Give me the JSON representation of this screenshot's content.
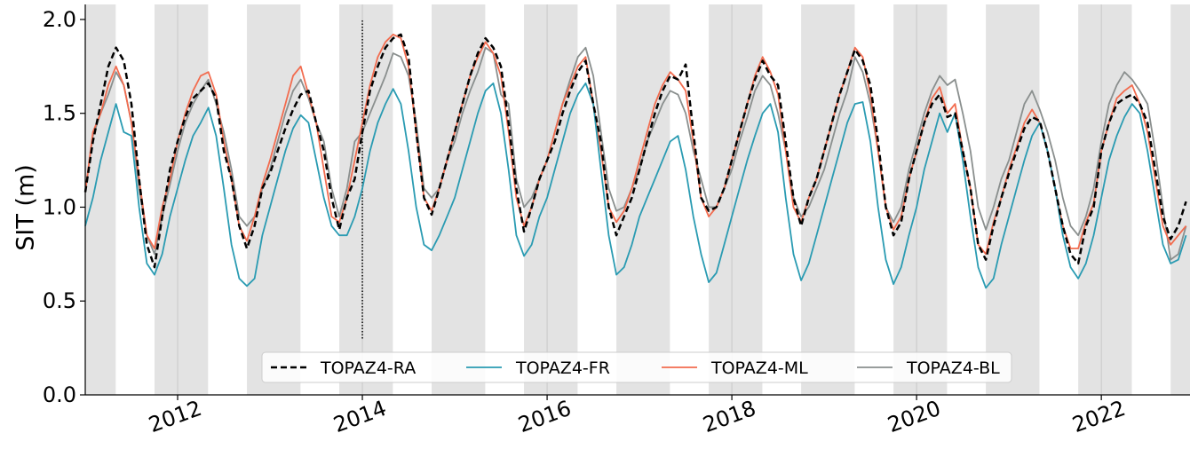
{
  "chart_data": {
    "type": "line",
    "y_label": "SIT (m)",
    "x": [
      2011,
      2011.083,
      2011.167,
      2011.25,
      2011.333,
      2011.417,
      2011.5,
      2011.583,
      2011.667,
      2011.75,
      2011.833,
      2011.917,
      2012,
      2012.083,
      2012.167,
      2012.25,
      2012.333,
      2012.417,
      2012.5,
      2012.583,
      2012.667,
      2012.75,
      2012.833,
      2012.917,
      2013,
      2013.083,
      2013.167,
      2013.25,
      2013.333,
      2013.417,
      2013.5,
      2013.583,
      2013.667,
      2013.75,
      2013.833,
      2013.917,
      2014,
      2014.083,
      2014.167,
      2014.25,
      2014.333,
      2014.417,
      2014.5,
      2014.583,
      2014.667,
      2014.75,
      2014.833,
      2014.917,
      2015,
      2015.083,
      2015.167,
      2015.25,
      2015.333,
      2015.417,
      2015.5,
      2015.583,
      2015.667,
      2015.75,
      2015.833,
      2015.917,
      2016,
      2016.083,
      2016.167,
      2016.25,
      2016.333,
      2016.417,
      2016.5,
      2016.583,
      2016.667,
      2016.75,
      2016.833,
      2016.917,
      2017,
      2017.083,
      2017.167,
      2017.25,
      2017.333,
      2017.417,
      2017.5,
      2017.583,
      2017.667,
      2017.75,
      2017.833,
      2017.917,
      2018,
      2018.083,
      2018.167,
      2018.25,
      2018.333,
      2018.417,
      2018.5,
      2018.583,
      2018.667,
      2018.75,
      2018.833,
      2018.917,
      2019,
      2019.083,
      2019.167,
      2019.25,
      2019.333,
      2019.417,
      2019.5,
      2019.583,
      2019.667,
      2019.75,
      2019.833,
      2019.917,
      2020,
      2020.083,
      2020.167,
      2020.25,
      2020.333,
      2020.417,
      2020.5,
      2020.583,
      2020.667,
      2020.75,
      2020.833,
      2020.917,
      2021,
      2021.083,
      2021.167,
      2021.25,
      2021.333,
      2021.417,
      2021.5,
      2021.583,
      2021.667,
      2021.75,
      2021.833,
      2021.917,
      2022,
      2022.083,
      2022.167,
      2022.25,
      2022.333,
      2022.417,
      2022.5,
      2022.583,
      2022.667,
      2022.75,
      2022.833,
      2022.917
    ],
    "series": [
      {
        "name": "TOPAZ4-RA",
        "color": "#000000",
        "dashed": true,
        "values": [
          1.08,
          1.35,
          1.55,
          1.75,
          1.85,
          1.78,
          1.55,
          1.15,
          0.8,
          0.68,
          0.95,
          1.2,
          1.35,
          1.48,
          1.58,
          1.62,
          1.66,
          1.58,
          1.3,
          1.15,
          0.9,
          0.78,
          0.9,
          1.1,
          1.18,
          1.3,
          1.42,
          1.52,
          1.6,
          1.62,
          1.45,
          1.3,
          1.05,
          0.88,
          1.05,
          1.15,
          1.4,
          1.62,
          1.75,
          1.85,
          1.9,
          1.92,
          1.8,
          1.4,
          1.05,
          0.96,
          1.1,
          1.25,
          1.4,
          1.55,
          1.7,
          1.82,
          1.9,
          1.85,
          1.75,
          1.45,
          1.1,
          0.87,
          1.0,
          1.15,
          1.25,
          1.35,
          1.5,
          1.62,
          1.72,
          1.78,
          1.55,
          1.35,
          1.0,
          0.85,
          0.95,
          1.05,
          1.2,
          1.35,
          1.5,
          1.62,
          1.7,
          1.68,
          1.76,
          1.4,
          1.05,
          0.98,
          1.0,
          1.1,
          1.25,
          1.4,
          1.55,
          1.68,
          1.78,
          1.7,
          1.65,
          1.35,
          1.05,
          0.9,
          1.05,
          1.15,
          1.3,
          1.45,
          1.6,
          1.72,
          1.84,
          1.78,
          1.65,
          1.35,
          1.0,
          0.85,
          0.92,
          1.15,
          1.3,
          1.45,
          1.55,
          1.6,
          1.48,
          1.5,
          1.3,
          1.1,
          0.8,
          0.72,
          0.9,
          1.05,
          1.18,
          1.3,
          1.42,
          1.48,
          1.46,
          1.3,
          1.1,
          0.9,
          0.75,
          0.7,
          0.9,
          1.0,
          1.3,
          1.45,
          1.55,
          1.58,
          1.6,
          1.55,
          1.45,
          1.2,
          0.95,
          0.83,
          0.9,
          1.03
        ]
      },
      {
        "name": "TOPAZ4-FR",
        "color": "#2a9bb2",
        "dashed": false,
        "values": [
          0.9,
          1.05,
          1.25,
          1.4,
          1.55,
          1.4,
          1.38,
          1.0,
          0.7,
          0.64,
          0.75,
          0.95,
          1.1,
          1.25,
          1.38,
          1.45,
          1.53,
          1.38,
          1.1,
          0.8,
          0.62,
          0.58,
          0.62,
          0.85,
          1.0,
          1.15,
          1.3,
          1.42,
          1.49,
          1.45,
          1.25,
          1.05,
          0.9,
          0.85,
          0.85,
          0.95,
          1.1,
          1.3,
          1.45,
          1.55,
          1.63,
          1.55,
          1.3,
          1.0,
          0.8,
          0.77,
          0.85,
          0.95,
          1.05,
          1.2,
          1.35,
          1.5,
          1.62,
          1.66,
          1.5,
          1.2,
          0.85,
          0.74,
          0.8,
          0.95,
          1.05,
          1.2,
          1.35,
          1.5,
          1.6,
          1.66,
          1.55,
          1.2,
          0.85,
          0.64,
          0.68,
          0.8,
          0.95,
          1.05,
          1.15,
          1.25,
          1.35,
          1.38,
          1.2,
          0.95,
          0.75,
          0.6,
          0.65,
          0.8,
          0.95,
          1.1,
          1.25,
          1.38,
          1.5,
          1.55,
          1.4,
          1.05,
          0.75,
          0.61,
          0.7,
          0.85,
          1.0,
          1.15,
          1.3,
          1.45,
          1.55,
          1.56,
          1.35,
          1.0,
          0.72,
          0.59,
          0.68,
          0.85,
          1.0,
          1.2,
          1.35,
          1.5,
          1.4,
          1.5,
          1.25,
          0.95,
          0.68,
          0.57,
          0.62,
          0.8,
          0.95,
          1.1,
          1.25,
          1.38,
          1.45,
          1.3,
          1.1,
          0.85,
          0.68,
          0.62,
          0.7,
          0.85,
          1.05,
          1.25,
          1.38,
          1.48,
          1.55,
          1.5,
          1.3,
          1.05,
          0.8,
          0.7,
          0.72,
          0.85
        ]
      },
      {
        "name": "TOPAZ4-ML",
        "color": "#f26c4f",
        "dashed": false,
        "values": [
          1.08,
          1.4,
          1.5,
          1.65,
          1.75,
          1.65,
          1.45,
          1.15,
          0.85,
          0.78,
          1.0,
          1.15,
          1.35,
          1.5,
          1.62,
          1.7,
          1.72,
          1.6,
          1.35,
          1.15,
          0.9,
          0.82,
          0.95,
          1.12,
          1.25,
          1.4,
          1.55,
          1.7,
          1.75,
          1.6,
          1.45,
          1.2,
          0.95,
          0.92,
          1.05,
          1.25,
          1.45,
          1.65,
          1.8,
          1.88,
          1.92,
          1.9,
          1.75,
          1.4,
          1.05,
          0.98,
          1.1,
          1.25,
          1.4,
          1.55,
          1.7,
          1.8,
          1.88,
          1.82,
          1.7,
          1.4,
          1.05,
          0.9,
          1.0,
          1.15,
          1.25,
          1.4,
          1.55,
          1.65,
          1.75,
          1.8,
          1.55,
          1.3,
          1.0,
          0.92,
          0.98,
          1.1,
          1.25,
          1.4,
          1.55,
          1.65,
          1.72,
          1.68,
          1.62,
          1.35,
          1.05,
          0.95,
          1.0,
          1.1,
          1.25,
          1.4,
          1.55,
          1.7,
          1.8,
          1.72,
          1.6,
          1.3,
          1.0,
          0.92,
          1.05,
          1.15,
          1.3,
          1.45,
          1.6,
          1.72,
          1.85,
          1.8,
          1.6,
          1.3,
          1.0,
          0.88,
          0.95,
          1.15,
          1.3,
          1.45,
          1.58,
          1.64,
          1.5,
          1.55,
          1.3,
          1.1,
          0.8,
          0.75,
          0.92,
          1.05,
          1.2,
          1.32,
          1.45,
          1.52,
          1.45,
          1.3,
          1.1,
          0.9,
          0.78,
          0.78,
          0.92,
          1.02,
          1.3,
          1.45,
          1.58,
          1.62,
          1.65,
          1.55,
          1.4,
          1.15,
          0.9,
          0.8,
          0.85,
          0.9
        ]
      },
      {
        "name": "TOPAZ4-BL",
        "color": "#8a8f8e",
        "dashed": false,
        "values": [
          1.08,
          1.38,
          1.5,
          1.6,
          1.72,
          1.65,
          1.45,
          1.1,
          0.85,
          0.75,
          0.95,
          1.12,
          1.3,
          1.45,
          1.55,
          1.62,
          1.68,
          1.55,
          1.4,
          1.2,
          0.95,
          0.9,
          0.95,
          1.1,
          1.2,
          1.35,
          1.5,
          1.62,
          1.68,
          1.58,
          1.45,
          1.35,
          1.1,
          0.95,
          1.1,
          1.35,
          1.4,
          1.5,
          1.6,
          1.7,
          1.82,
          1.8,
          1.7,
          1.45,
          1.1,
          1.05,
          1.1,
          1.25,
          1.35,
          1.5,
          1.62,
          1.72,
          1.85,
          1.82,
          1.6,
          1.55,
          1.15,
          1.0,
          1.05,
          1.15,
          1.25,
          1.4,
          1.55,
          1.68,
          1.8,
          1.85,
          1.7,
          1.4,
          1.1,
          0.98,
          1.0,
          1.1,
          1.2,
          1.35,
          1.45,
          1.55,
          1.62,
          1.6,
          1.5,
          1.3,
          1.15,
          1.0,
          1.0,
          1.1,
          1.2,
          1.35,
          1.48,
          1.62,
          1.7,
          1.65,
          1.5,
          1.3,
          1.05,
          0.95,
          1.0,
          1.1,
          1.2,
          1.35,
          1.5,
          1.62,
          1.8,
          1.72,
          1.55,
          1.3,
          1.0,
          0.92,
          1.0,
          1.2,
          1.35,
          1.5,
          1.62,
          1.7,
          1.65,
          1.68,
          1.5,
          1.3,
          1.0,
          0.88,
          1.0,
          1.15,
          1.25,
          1.4,
          1.55,
          1.62,
          1.52,
          1.4,
          1.25,
          1.05,
          0.9,
          0.85,
          0.95,
          1.1,
          1.35,
          1.55,
          1.65,
          1.72,
          1.68,
          1.62,
          1.55,
          1.3,
          1.0,
          0.72,
          0.75,
          0.9
        ]
      }
    ],
    "xlim": [
      2011,
      2022.96
    ],
    "xticks": [
      2012,
      2014,
      2016,
      2018,
      2020,
      2022
    ],
    "ylim": [
      0,
      2.08
    ],
    "yticks": [
      {
        "value": 0,
        "label": "0.0"
      },
      0.5,
      {
        "value": 1,
        "label": "1.0"
      },
      1.5,
      {
        "value": 2,
        "label": "2.0"
      }
    ],
    "x_grid": true,
    "shaded_periods": [
      [
        2011,
        2011.33
      ],
      [
        2011.75,
        2012.33
      ],
      [
        2012.75,
        2013.33
      ],
      [
        2013.75,
        2014.33
      ],
      [
        2014.75,
        2015.33
      ],
      [
        2015.75,
        2016.33
      ],
      [
        2016.75,
        2017.33
      ],
      [
        2017.75,
        2018.33
      ],
      [
        2018.75,
        2019.33
      ],
      [
        2019.75,
        2020.33
      ],
      [
        2020.75,
        2021.33
      ],
      [
        2021.75,
        2022.33
      ],
      [
        2022.75,
        2022.96
      ]
    ],
    "vertical_line": {
      "x": 2014,
      "ymin": 0.3,
      "ymax": 2.0
    },
    "legend": "lower center"
  }
}
